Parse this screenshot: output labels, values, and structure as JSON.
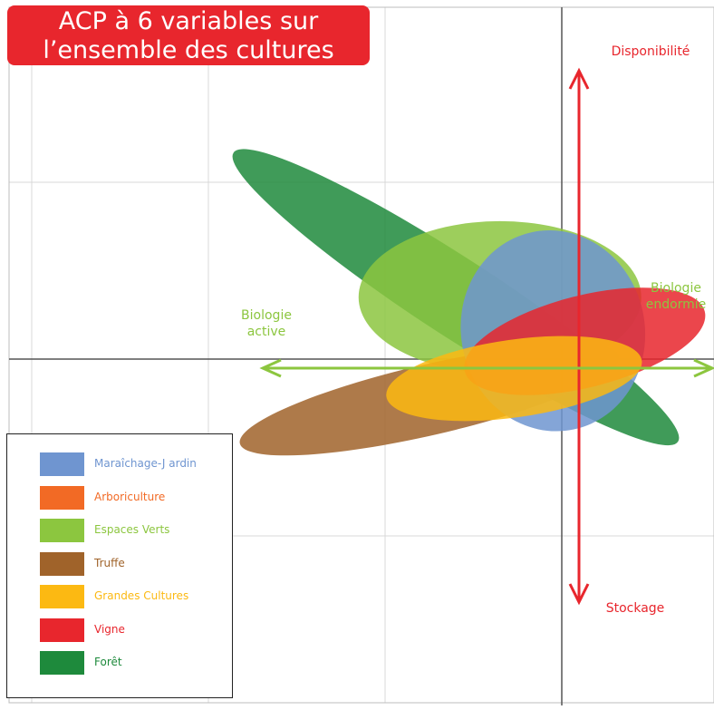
{
  "title": "ACP à 6 variables sur l’ensemble des cultures",
  "chart_data": {
    "type": "scatter",
    "title": "ACP à 6 variables sur l’ensemble des cultures",
    "xlim": [
      -3,
      1
    ],
    "ylim": [
      -1.9,
      2
    ],
    "grid": true,
    "legend_position": "bottom-left",
    "axes_annotations": {
      "vertical_top": "Disponibilité",
      "vertical_bottom": "Stockage",
      "horizontal_left": "Biologie active",
      "horizontal_right": "Biologie endormie"
    },
    "series": [
      {
        "name": "Forêt",
        "color": "#1e8a3c",
        "ellipse": {
          "cx": -0.6,
          "cy": 0.35,
          "rx": 1.5,
          "ry": 0.22,
          "angle_deg": 33
        }
      },
      {
        "name": "Espaces Verts",
        "color": "#8cc63f",
        "ellipse": {
          "cx": -0.35,
          "cy": 0.35,
          "rx": 0.8,
          "ry": 0.43,
          "angle_deg": 0
        }
      },
      {
        "name": "Truffe",
        "color": "#a0632a",
        "ellipse": {
          "cx": -0.75,
          "cy": -0.23,
          "rx": 1.1,
          "ry": 0.2,
          "angle_deg": -13
        }
      },
      {
        "name": "Maraîchage-J ardin",
        "color": "#6f95d0",
        "ellipse": {
          "cx": -0.05,
          "cy": 0.16,
          "rx": 0.52,
          "ry": 0.57,
          "angle_deg": -12
        }
      },
      {
        "name": "Vigne",
        "color": "#e8262d",
        "ellipse": {
          "cx": 0.13,
          "cy": 0.1,
          "rx": 0.7,
          "ry": 0.26,
          "angle_deg": -14
        }
      },
      {
        "name": "Grandes Cultures",
        "color": "#fcb912",
        "ellipse": {
          "cx": -0.27,
          "cy": -0.11,
          "rx": 0.73,
          "ry": 0.22,
          "angle_deg": -8
        }
      },
      {
        "name": "Arboriculture",
        "color": "#f26a25",
        "ellipse": null
      }
    ],
    "legend": [
      {
        "label": "Maraîchage-J ardin",
        "color": "#6f95d0"
      },
      {
        "label": "Arboriculture",
        "color": "#f26a25"
      },
      {
        "label": "Espaces Verts",
        "color": "#8cc63f"
      },
      {
        "label": "Truffe",
        "color": "#a0632a"
      },
      {
        "label": "Grandes Cultures",
        "color": "#fcb912"
      },
      {
        "label": "Vigne",
        "color": "#e8262d"
      },
      {
        "label": "Forêt",
        "color": "#1e8a3c"
      }
    ]
  }
}
